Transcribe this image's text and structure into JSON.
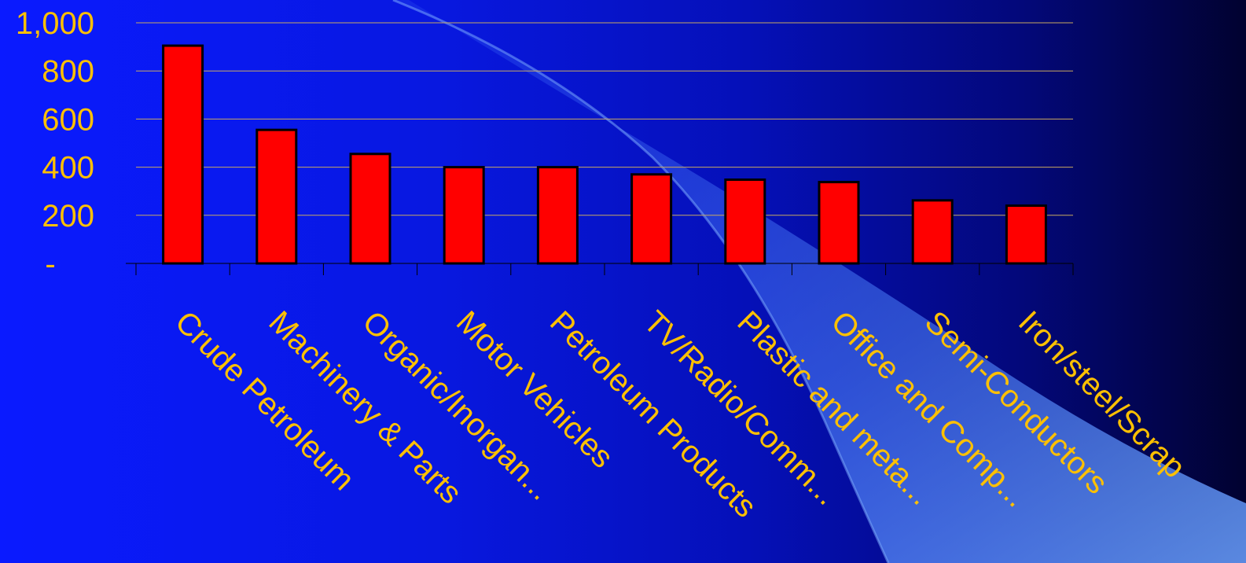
{
  "colors": {
    "bar_fill": "#ff0000",
    "bar_stroke": "#000000",
    "text": "#ffc000",
    "gridline": "#c9a960",
    "axis": "#000000"
  },
  "chart_data": {
    "type": "bar",
    "title": "",
    "xlabel": "",
    "ylabel": "",
    "ylim": [
      0,
      1000
    ],
    "grid": true,
    "legend": "none",
    "yticks": [
      "-",
      "200",
      "400",
      "600",
      "800",
      "1,000"
    ],
    "categories": [
      "Crude Petroleum",
      "Machinery & Parts",
      "Organic/Inorgan...",
      "Motor Vehicles",
      "Petroleum Products",
      "TV/Radio/Comm...",
      "Plastic and meta...",
      "Office and Comp...",
      "Semi-Conductors",
      "Iron/steel/Scrap"
    ],
    "values": [
      905,
      555,
      455,
      400,
      400,
      370,
      348,
      338,
      262,
      240
    ]
  }
}
